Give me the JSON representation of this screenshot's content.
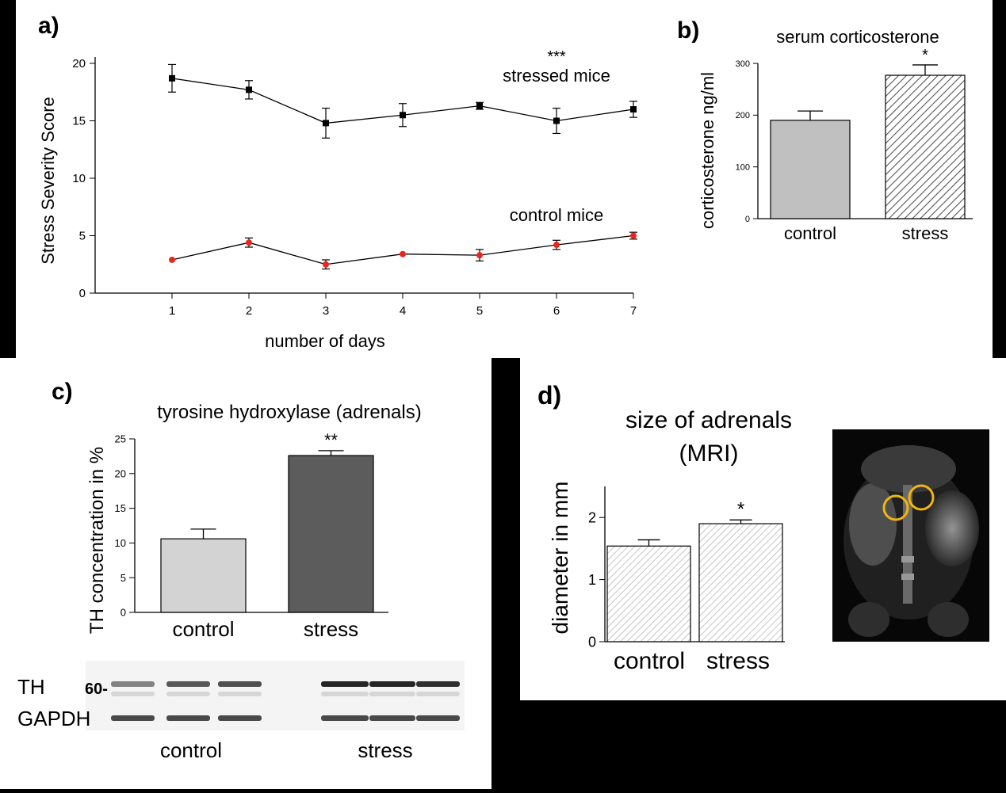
{
  "chart_data": [
    {
      "panel": "a)",
      "type": "line",
      "xlabel": "number of days",
      "ylabel": "Stress Severity Score",
      "xlim": [
        0,
        7
      ],
      "ylim": [
        0,
        20
      ],
      "x_ticks": [
        "1",
        "2",
        "3",
        "4",
        "5",
        "6",
        "7"
      ],
      "y_ticks": [
        "0",
        "5",
        "10",
        "15",
        "20"
      ],
      "series": [
        {
          "name": "stressed mice",
          "annotation": "***",
          "color": "#000000",
          "marker": "square",
          "x": [
            1,
            2,
            3,
            4,
            5,
            6,
            7
          ],
          "y": [
            18.7,
            17.7,
            14.8,
            15.5,
            16.3,
            15.0,
            16.0
          ],
          "err": [
            1.2,
            0.8,
            1.3,
            1.0,
            0.3,
            1.1,
            0.7
          ]
        },
        {
          "name": "control mice",
          "color": "#e8281e",
          "marker": "circle",
          "x": [
            1,
            2,
            3,
            4,
            5,
            6,
            7
          ],
          "y": [
            2.9,
            4.4,
            2.5,
            3.4,
            3.3,
            4.2,
            5.0
          ],
          "err": [
            0.0,
            0.4,
            0.4,
            0.0,
            0.5,
            0.4,
            0.3
          ]
        }
      ]
    },
    {
      "panel": "b)",
      "type": "bar",
      "title": "serum corticosterone",
      "ylabel": "corticosterone ng/ml",
      "ylim": [
        0,
        300
      ],
      "y_ticks": [
        "0",
        "100",
        "200",
        "300"
      ],
      "categories": [
        "control",
        "stress"
      ],
      "values": [
        190,
        277
      ],
      "err": [
        18,
        20
      ],
      "annotations": [
        "",
        "*"
      ],
      "fills": [
        "#c0c0c0",
        "hatch"
      ]
    },
    {
      "panel": "c)",
      "type": "bar",
      "title": "tyrosine hydroxylase (adrenals)",
      "ylabel": "TH concentration in %",
      "ylim": [
        0,
        25
      ],
      "y_ticks": [
        "0",
        "5",
        "10",
        "15",
        "20",
        "25"
      ],
      "categories": [
        "control",
        "stress"
      ],
      "values": [
        10.6,
        22.6
      ],
      "err": [
        1.4,
        0.7
      ],
      "annotations": [
        "",
        "**"
      ],
      "fills": [
        "#d3d3d3",
        "#5c5c5c"
      ],
      "blot": {
        "rows": [
          "TH",
          "GAPDH"
        ],
        "marker": "60-",
        "groups": [
          "control",
          "stress"
        ]
      }
    },
    {
      "panel": "d)",
      "type": "bar",
      "title": [
        "size of adrenals",
        "(MRI)"
      ],
      "ylabel": "diameter in mm",
      "ylim": [
        0,
        2.5
      ],
      "y_ticks": [
        "0",
        "1",
        "2"
      ],
      "categories": [
        "control",
        "stress"
      ],
      "values": [
        1.54,
        1.9
      ],
      "err": [
        0.1,
        0.06
      ],
      "annotations": [
        "",
        "*"
      ],
      "fills": [
        "hatch-light",
        "hatch-light"
      ]
    }
  ]
}
